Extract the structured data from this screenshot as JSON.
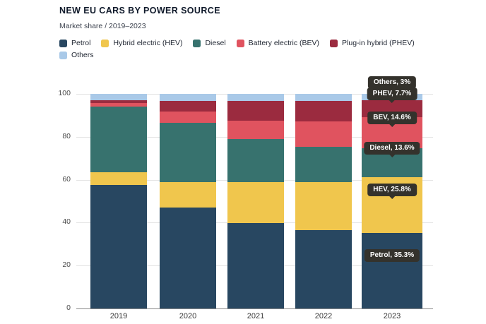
{
  "title": "NEW EU CARS BY POWER SOURCE",
  "subtitle": "Market share / 2019–2023",
  "colors": {
    "petrol": "#284761",
    "hev": "#f0c64d",
    "diesel": "#37726e",
    "bev": "#e0535f",
    "phev": "#9b2b3f",
    "others": "#a9c9e8",
    "tooltip_bg": "#34322c",
    "gridline": "#e4e4e4",
    "axis": "#8a8a8a"
  },
  "legend": {
    "rows": [
      [
        {
          "key": "petrol",
          "label": "Petrol"
        },
        {
          "key": "hev",
          "label": "Hybrid electric (HEV)"
        },
        {
          "key": "diesel",
          "label": "Diesel"
        },
        {
          "key": "bev",
          "label": "Battery electric (BEV)"
        },
        {
          "key": "phev",
          "label": "Plug-in hybrid (PHEV)"
        }
      ],
      [
        {
          "key": "others",
          "label": "Others"
        }
      ]
    ]
  },
  "chart_data": {
    "type": "bar",
    "stacked": true,
    "title": "NEW EU CARS BY POWER SOURCE",
    "subtitle": "Market share / 2019–2023",
    "categories": [
      "2019",
      "2020",
      "2021",
      "2022",
      "2023"
    ],
    "series": [
      {
        "key": "petrol",
        "name": "Petrol",
        "values": [
          57.7,
          47.0,
          39.9,
          36.4,
          35.3
        ]
      },
      {
        "key": "hev",
        "name": "Hybrid electric (HEV)",
        "values": [
          5.7,
          12.0,
          19.1,
          22.5,
          25.8
        ]
      },
      {
        "key": "diesel",
        "name": "Diesel",
        "values": [
          30.6,
          27.5,
          20.1,
          16.4,
          13.6
        ]
      },
      {
        "key": "bev",
        "name": "Battery electric (BEV)",
        "values": [
          1.9,
          5.2,
          8.3,
          11.9,
          14.6
        ]
      },
      {
        "key": "phev",
        "name": "Plug-in hybrid (PHEV)",
        "values": [
          1.2,
          5.1,
          9.2,
          9.4,
          7.7
        ]
      },
      {
        "key": "others",
        "name": "Others",
        "values": [
          2.9,
          3.2,
          3.4,
          3.4,
          3.0
        ]
      }
    ],
    "unit": "%",
    "ylim": [
      0,
      100
    ],
    "yticks": [
      0,
      20,
      40,
      60,
      80,
      100
    ],
    "grid": "horizontal",
    "legend_position": "top",
    "annotations": [
      {
        "text": "Others, 3%",
        "series_key": "others",
        "pointer": false
      },
      {
        "text": "PHEV, 7.7%",
        "series_key": "phev",
        "pointer": true
      },
      {
        "text": "BEV, 14.6%",
        "series_key": "bev",
        "pointer": true
      },
      {
        "text": "Diesel, 13.6%",
        "series_key": "diesel",
        "pointer": true
      },
      {
        "text": "HEV, 25.8%",
        "series_key": "hev",
        "pointer": true
      },
      {
        "text": "Petrol, 35.3%",
        "series_key": "petrol",
        "pointer": false
      }
    ]
  }
}
